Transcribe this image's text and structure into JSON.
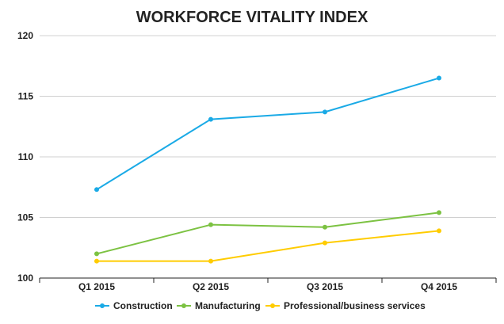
{
  "chart_data": {
    "type": "line",
    "title": "WORKFORCE VITALITY INDEX",
    "xlabel": "",
    "ylabel": "",
    "categories": [
      "Q1 2015",
      "Q2 2015",
      "Q3 2015",
      "Q4 2015"
    ],
    "yticks": [
      "100",
      "105",
      "110",
      "115",
      "120"
    ],
    "ylim": [
      100,
      120
    ],
    "grid": true,
    "legend_position": "bottom",
    "series": [
      {
        "name": "Construction",
        "color": "#1aaae6",
        "values": [
          107.3,
          113.1,
          113.7,
          116.5
        ]
      },
      {
        "name": "Manufacturing",
        "color": "#7cc242",
        "values": [
          102.0,
          104.4,
          104.2,
          105.4
        ]
      },
      {
        "name": "Professional/business services",
        "color": "#ffcc00",
        "values": [
          101.4,
          101.4,
          102.9,
          103.9
        ]
      }
    ]
  }
}
